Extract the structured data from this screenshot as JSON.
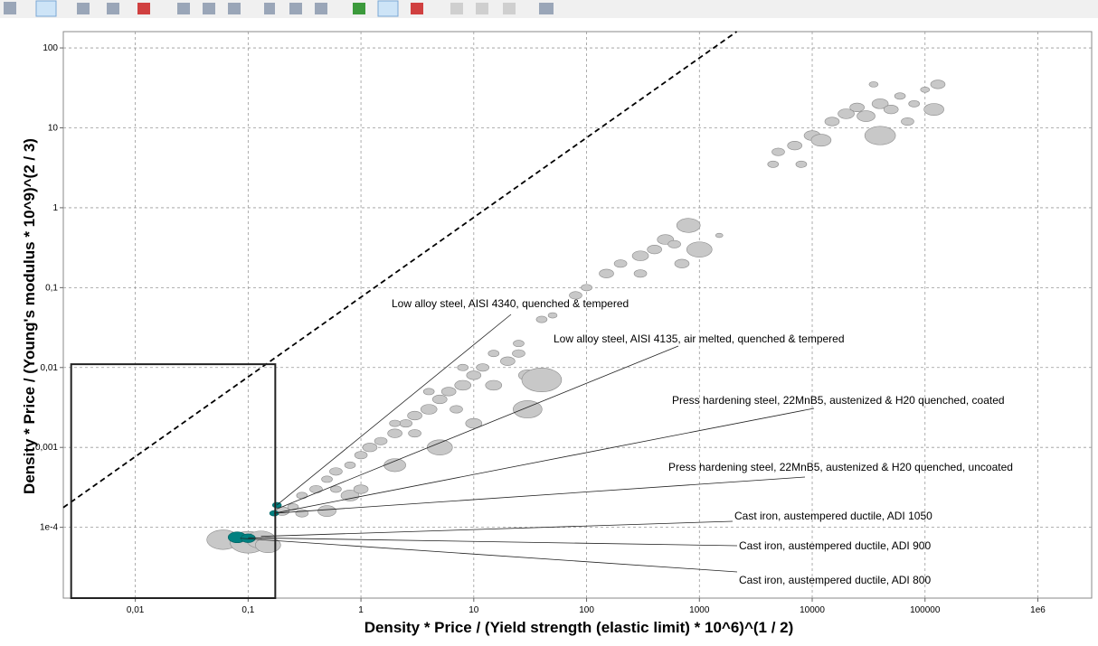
{
  "chart_data": {
    "type": "scatter",
    "x_label": "Density * Price / (Yield strength (elastic limit) * 10^6)^(1 / 2)",
    "y_label": "Density * Price / (Young's modulus * 10^9)^(2 / 3)",
    "log_x": true,
    "log_y": true,
    "grid": true,
    "xlim": [
      0.0023,
      3000000
    ],
    "ylim": [
      1.3e-05,
      160
    ],
    "xticks": [
      {
        "value": 0.01,
        "label": "0,01"
      },
      {
        "value": 0.1,
        "label": "0,1"
      },
      1,
      10,
      100,
      1000,
      10000,
      100000,
      {
        "value": 1000000,
        "label": "1e6"
      }
    ],
    "yticks": [
      {
        "value": 0.0001,
        "label": "1e-4"
      },
      {
        "value": 0.001,
        "label": "0,001"
      },
      {
        "value": 0.01,
        "label": "0,01"
      },
      {
        "value": 0.1,
        "label": "0,1"
      },
      1,
      10,
      100
    ],
    "guideline": {
      "x": [
        0.0023,
        2140
      ],
      "y": [
        0.000177,
        160
      ]
    },
    "selection_box": {
      "x": [
        0.0027,
        0.174
      ],
      "y": [
        1.3e-05,
        0.011
      ]
    },
    "series": [
      {
        "color": "#c8c8c8",
        "x": [
          0.25,
          0.3,
          0.4,
          0.5,
          0.6,
          0.8,
          1,
          1.2,
          1.5,
          2,
          2.5,
          3,
          4,
          5,
          6,
          8,
          10,
          12,
          15,
          20,
          25,
          30,
          40,
          30,
          5,
          2,
          0.8,
          0.5,
          1,
          3,
          7,
          10,
          0.3,
          0.6,
          15,
          4,
          8,
          2,
          25,
          40,
          50,
          80,
          100,
          150,
          200,
          300,
          400,
          500,
          600,
          800,
          1000,
          700,
          300,
          1500,
          5000,
          7000,
          10000,
          12000,
          15000,
          20000,
          25000,
          30000,
          40000,
          50000,
          60000,
          80000,
          100000,
          130000,
          120000,
          40000,
          8000,
          4500,
          35000,
          70000,
          0.06,
          0.1,
          0.13,
          0.15,
          0.2
        ],
        "values": [
          0.00018,
          0.00025,
          0.0003,
          0.0004,
          0.0005,
          0.0006,
          0.0008,
          0.001,
          0.0012,
          0.0015,
          0.002,
          0.0025,
          0.003,
          0.004,
          0.005,
          0.006,
          0.008,
          0.01,
          0.006,
          0.012,
          0.015,
          0.008,
          0.007,
          0.003,
          0.001,
          0.0006,
          0.00025,
          0.00016,
          0.0003,
          0.0015,
          0.003,
          0.002,
          0.00015,
          0.0003,
          0.015,
          0.005,
          0.01,
          0.002,
          0.02,
          0.04,
          0.045,
          0.08,
          0.1,
          0.15,
          0.2,
          0.25,
          0.3,
          0.4,
          0.35,
          0.6,
          0.3,
          0.2,
          0.15,
          0.45,
          5,
          6,
          8,
          7,
          12,
          15,
          18,
          14,
          20,
          17,
          25,
          20,
          30,
          35,
          17,
          8,
          3.5,
          3.5,
          35,
          12,
          7e-05,
          6.5e-05,
          7e-05,
          6e-05,
          0.00016
        ],
        "sizes": [
          6,
          6,
          7,
          6,
          7,
          6,
          7,
          8,
          7,
          8,
          7,
          8,
          9,
          8,
          8,
          9,
          8,
          7,
          9,
          8,
          7,
          10,
          22,
          16,
          14,
          12,
          10,
          10,
          8,
          7,
          7,
          9,
          7,
          6,
          6,
          6,
          6,
          6,
          6,
          6,
          5,
          7,
          6,
          8,
          7,
          9,
          8,
          9,
          7,
          13,
          14,
          8,
          7,
          4,
          7,
          8,
          9,
          11,
          8,
          9,
          8,
          10,
          9,
          8,
          6,
          6,
          5,
          8,
          11,
          17,
          6,
          6,
          5,
          7,
          18,
          20,
          16,
          14,
          8
        ]
      },
      {
        "color": "#008080",
        "x": [
          0.08,
          0.1,
          0.17,
          0.18
        ],
        "values": [
          7.5e-05,
          7.3e-05,
          0.00015,
          0.00019
        ],
        "sizes": [
          10,
          8,
          5,
          5
        ]
      }
    ],
    "annotations": [
      {
        "text": "Low alloy steel, AISI 4340, quenched & tempered",
        "point": [
          0.18,
          0.00019
        ]
      },
      {
        "text": "Low alloy steel, AISI 4135, air melted, quenched & tempered",
        "point": [
          0.18,
          0.00017
        ]
      },
      {
        "text": "Press hardening steel, 22MnB5, austenized & H20 quenched, coated",
        "point": [
          0.17,
          0.00015
        ]
      },
      {
        "text": "Press hardening steel, 22MnB5, austenized & H20 quenched, uncoated",
        "point": [
          0.17,
          0.00015
        ]
      },
      {
        "text": "Cast iron, austempered ductile, ADI 1050",
        "point": [
          0.13,
          7.7e-05
        ]
      },
      {
        "text": "Cast iron, austempered ductile, ADI 900",
        "point": [
          0.1,
          7.4e-05
        ]
      },
      {
        "text": "Cast iron, austempered ductile, ADI 800",
        "point": [
          0.085,
          7.3e-05
        ]
      }
    ]
  }
}
